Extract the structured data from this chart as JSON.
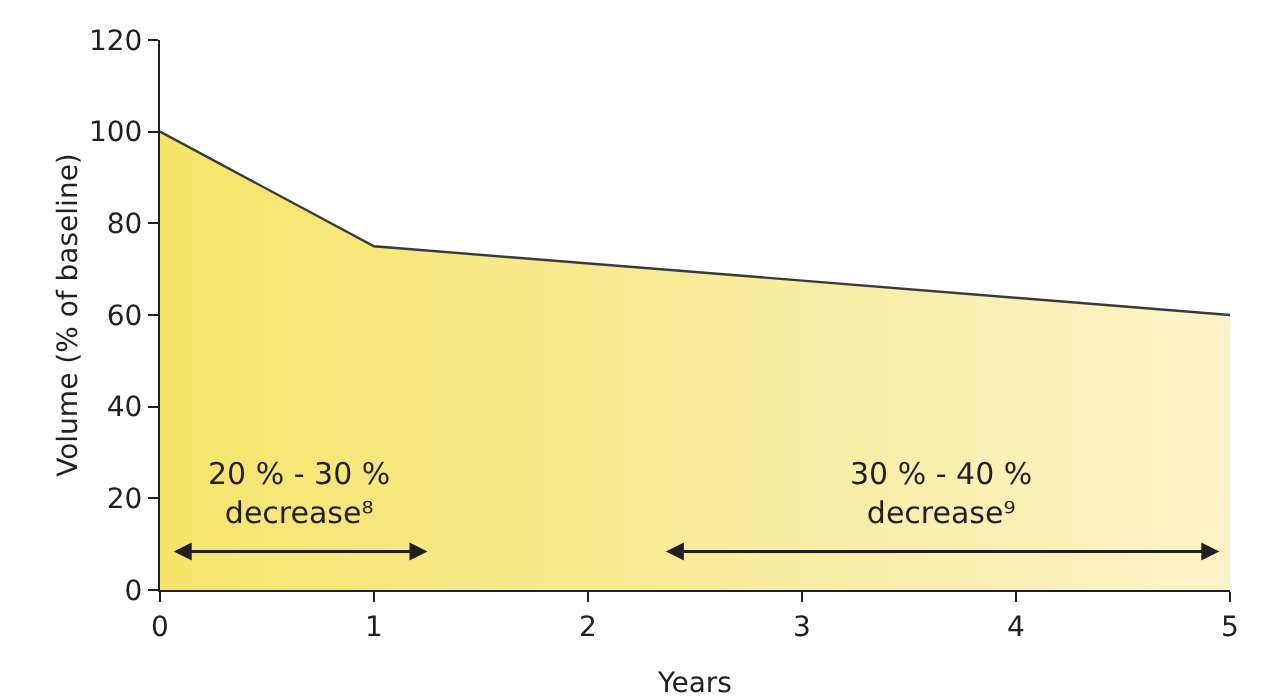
{
  "chart_data": {
    "type": "area",
    "xlabel": "Years",
    "ylabel": "Volume (% of baseline)",
    "x": [
      0,
      1,
      5
    ],
    "series": [
      {
        "color": "#f5e46a",
        "values": [
          100,
          75,
          60
        ]
      }
    ],
    "xlim": [
      0,
      5
    ],
    "xticks": [
      0,
      1,
      2,
      3,
      4,
      5
    ],
    "ylim": [
      0,
      120
    ],
    "yticks": [
      0,
      20,
      40,
      60,
      80,
      100,
      120
    ],
    "grid": false,
    "annotations": [
      "20 % - 30 %\ndecrease⁸",
      "30 % - 40 %\ndecrease⁹"
    ]
  }
}
